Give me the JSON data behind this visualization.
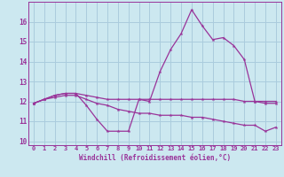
{
  "xlabel": "Windchill (Refroidissement éolien,°C)",
  "hours": [
    0,
    1,
    2,
    3,
    4,
    5,
    6,
    7,
    8,
    9,
    10,
    11,
    12,
    13,
    14,
    15,
    16,
    17,
    18,
    19,
    20,
    21,
    22,
    23
  ],
  "line1": [
    11.9,
    12.1,
    12.3,
    12.4,
    12.4,
    11.8,
    11.1,
    10.5,
    10.5,
    10.5,
    12.1,
    12.0,
    13.5,
    14.6,
    15.4,
    16.6,
    15.8,
    15.1,
    15.2,
    14.8,
    14.1,
    12.0,
    11.9,
    11.9
  ],
  "line2": [
    11.9,
    12.1,
    12.3,
    12.4,
    12.4,
    12.3,
    12.2,
    12.1,
    12.1,
    12.1,
    12.1,
    12.1,
    12.1,
    12.1,
    12.1,
    12.1,
    12.1,
    12.1,
    12.1,
    12.1,
    12.0,
    12.0,
    12.0,
    12.0
  ],
  "line3": [
    11.9,
    12.1,
    12.2,
    12.3,
    12.3,
    12.1,
    11.9,
    11.8,
    11.6,
    11.5,
    11.4,
    11.4,
    11.3,
    11.3,
    11.3,
    11.2,
    11.2,
    11.1,
    11.0,
    10.9,
    10.8,
    10.8,
    10.5,
    10.7
  ],
  "line_color": "#993399",
  "bg_color": "#cce8f0",
  "grid_color": "#aaccdd",
  "ylim": [
    9.8,
    17.0
  ],
  "yticks": [
    10,
    11,
    12,
    13,
    14,
    15,
    16
  ],
  "xticks": [
    0,
    1,
    2,
    3,
    4,
    5,
    6,
    7,
    8,
    9,
    10,
    11,
    12,
    13,
    14,
    15,
    16,
    17,
    18,
    19,
    20,
    21,
    22,
    23
  ],
  "xlabel_fontsize": 5.5,
  "tick_fontsize": 5.0
}
